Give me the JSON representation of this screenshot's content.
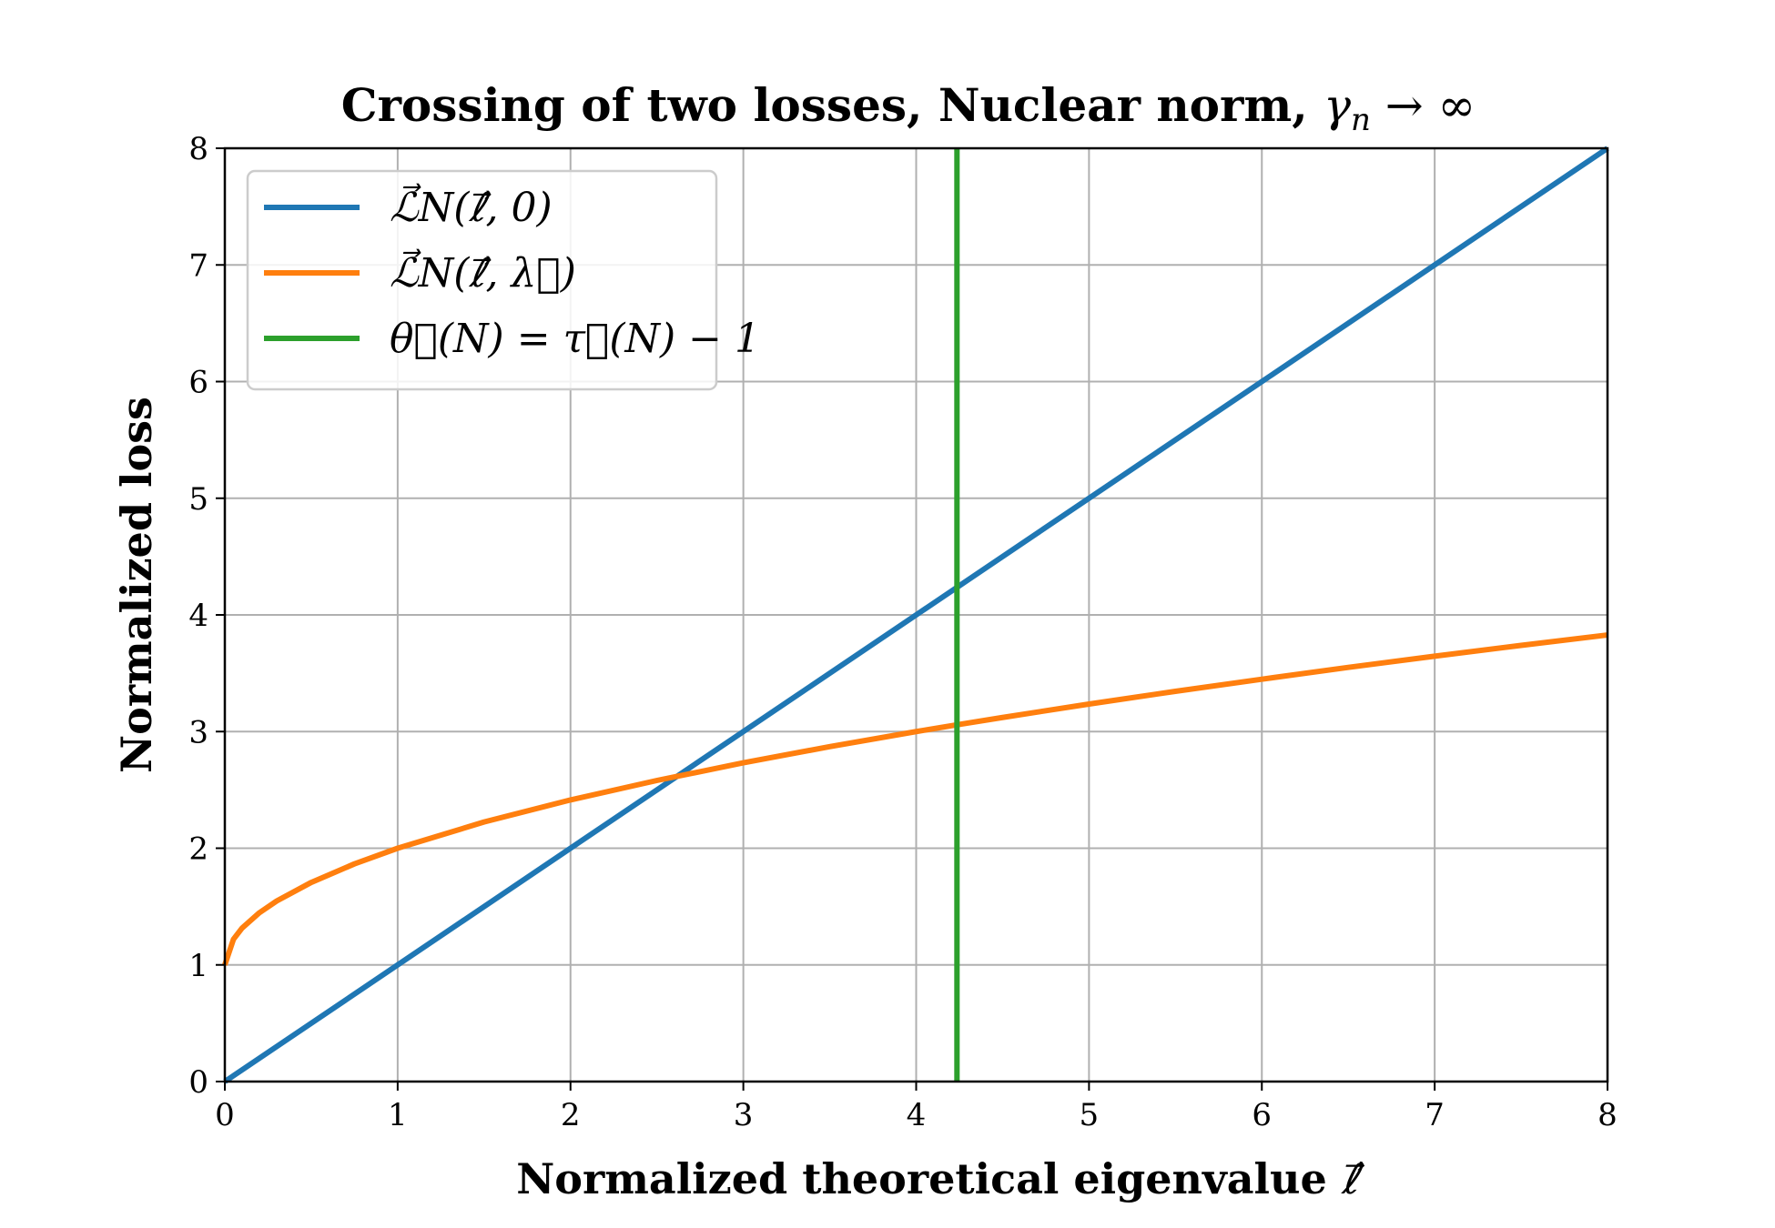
{
  "chart_data": {
    "type": "line",
    "title": {
      "text": "Crossing of two losses, Nuclear norm, ",
      "math": "γ",
      "math_sub": "n",
      "math_tail": " → ∞"
    },
    "xlabel": {
      "text": "Normalized theoretical eigenvalue ",
      "math": "ℓ⃗"
    },
    "ylabel": "Normalized loss",
    "xlim": [
      0,
      8
    ],
    "ylim": [
      0,
      8
    ],
    "xticks": [
      "0",
      "1",
      "2",
      "3",
      "4",
      "5",
      "6",
      "7",
      "8"
    ],
    "yticks": [
      "0",
      "1",
      "2",
      "3",
      "4",
      "5",
      "6",
      "7",
      "8"
    ],
    "grid": true,
    "legend_position": "top-left",
    "series": [
      {
        "name": "ℒ⃗N(ℓ⃗, 0)",
        "color": "#1f77b4",
        "x": [
          0,
          1,
          2,
          3,
          4,
          4.236,
          5,
          6,
          7,
          8
        ],
        "y": [
          0,
          1,
          2,
          3,
          4,
          4.236,
          5,
          6,
          7,
          8
        ]
      },
      {
        "name": "ℒ⃗N(ℓ⃗, λ⃗)",
        "color": "#ff7f0e",
        "x": [
          0,
          0.05,
          0.1,
          0.2,
          0.3,
          0.5,
          0.75,
          1,
          1.5,
          2,
          2.5,
          3,
          3.5,
          4,
          4.236,
          4.5,
          5,
          5.5,
          6,
          6.5,
          7,
          7.5,
          8
        ],
        "y": [
          1,
          1.22,
          1.316,
          1.447,
          1.548,
          1.707,
          1.866,
          2,
          2.225,
          2.414,
          2.581,
          2.732,
          2.871,
          3,
          3.058,
          3.121,
          3.236,
          3.345,
          3.449,
          3.55,
          3.646,
          3.739,
          3.828
        ]
      },
      {
        "name": "θ⃗(N) = τ⃗(N) − 1",
        "color": "#2ca02c",
        "x": [
          4.236,
          4.236
        ],
        "y": [
          0,
          8
        ]
      }
    ]
  }
}
